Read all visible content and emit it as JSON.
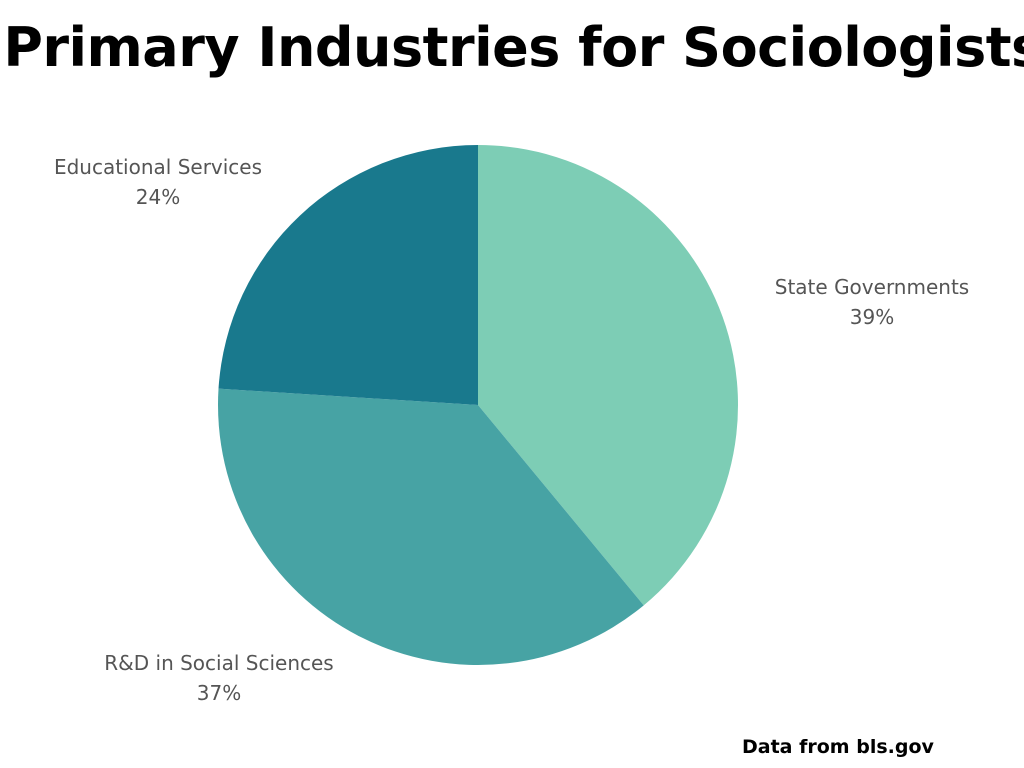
{
  "title": "Primary Industries for Sociologists",
  "source": "Data from bls.gov",
  "chart_data": {
    "type": "pie",
    "title": "Primary Industries for Sociologists",
    "categories": [
      "State Governments",
      "R&D in Social Sciences",
      "Educational Services"
    ],
    "values": [
      39,
      37,
      24
    ],
    "value_labels": [
      "39%",
      "37%",
      "24%"
    ],
    "colors": [
      "#7dcdb5",
      "#47a3a4",
      "#19798d"
    ],
    "start_angle_deg": 0,
    "direction": "clockwise"
  }
}
